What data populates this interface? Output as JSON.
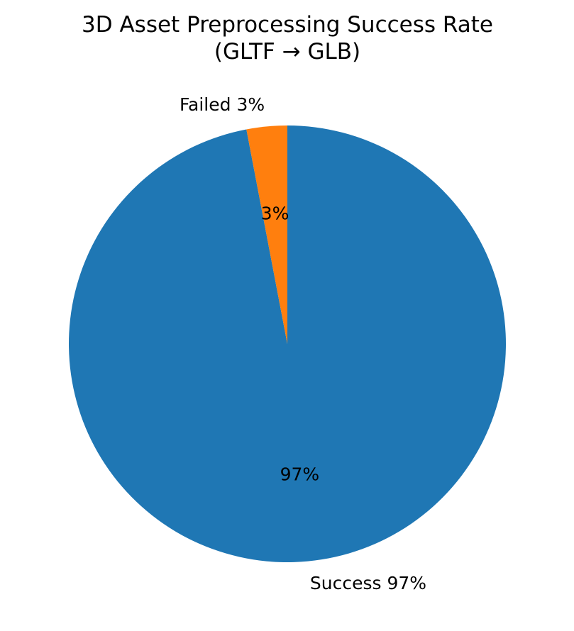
{
  "chart_data": {
    "type": "pie",
    "title_lines": [
      "3D Asset Preprocessing Success Rate",
      "(GLTF → GLB)"
    ],
    "categories": [
      "Success",
      "Failed"
    ],
    "values": [
      97,
      3
    ],
    "outer_labels": [
      "Success 97%",
      "Failed 3%"
    ],
    "pct_labels": [
      "97%",
      "3%"
    ],
    "colors": [
      "#1f77b4",
      "#ff7f0e"
    ],
    "start_angle": 90,
    "direction": "clockwise"
  }
}
